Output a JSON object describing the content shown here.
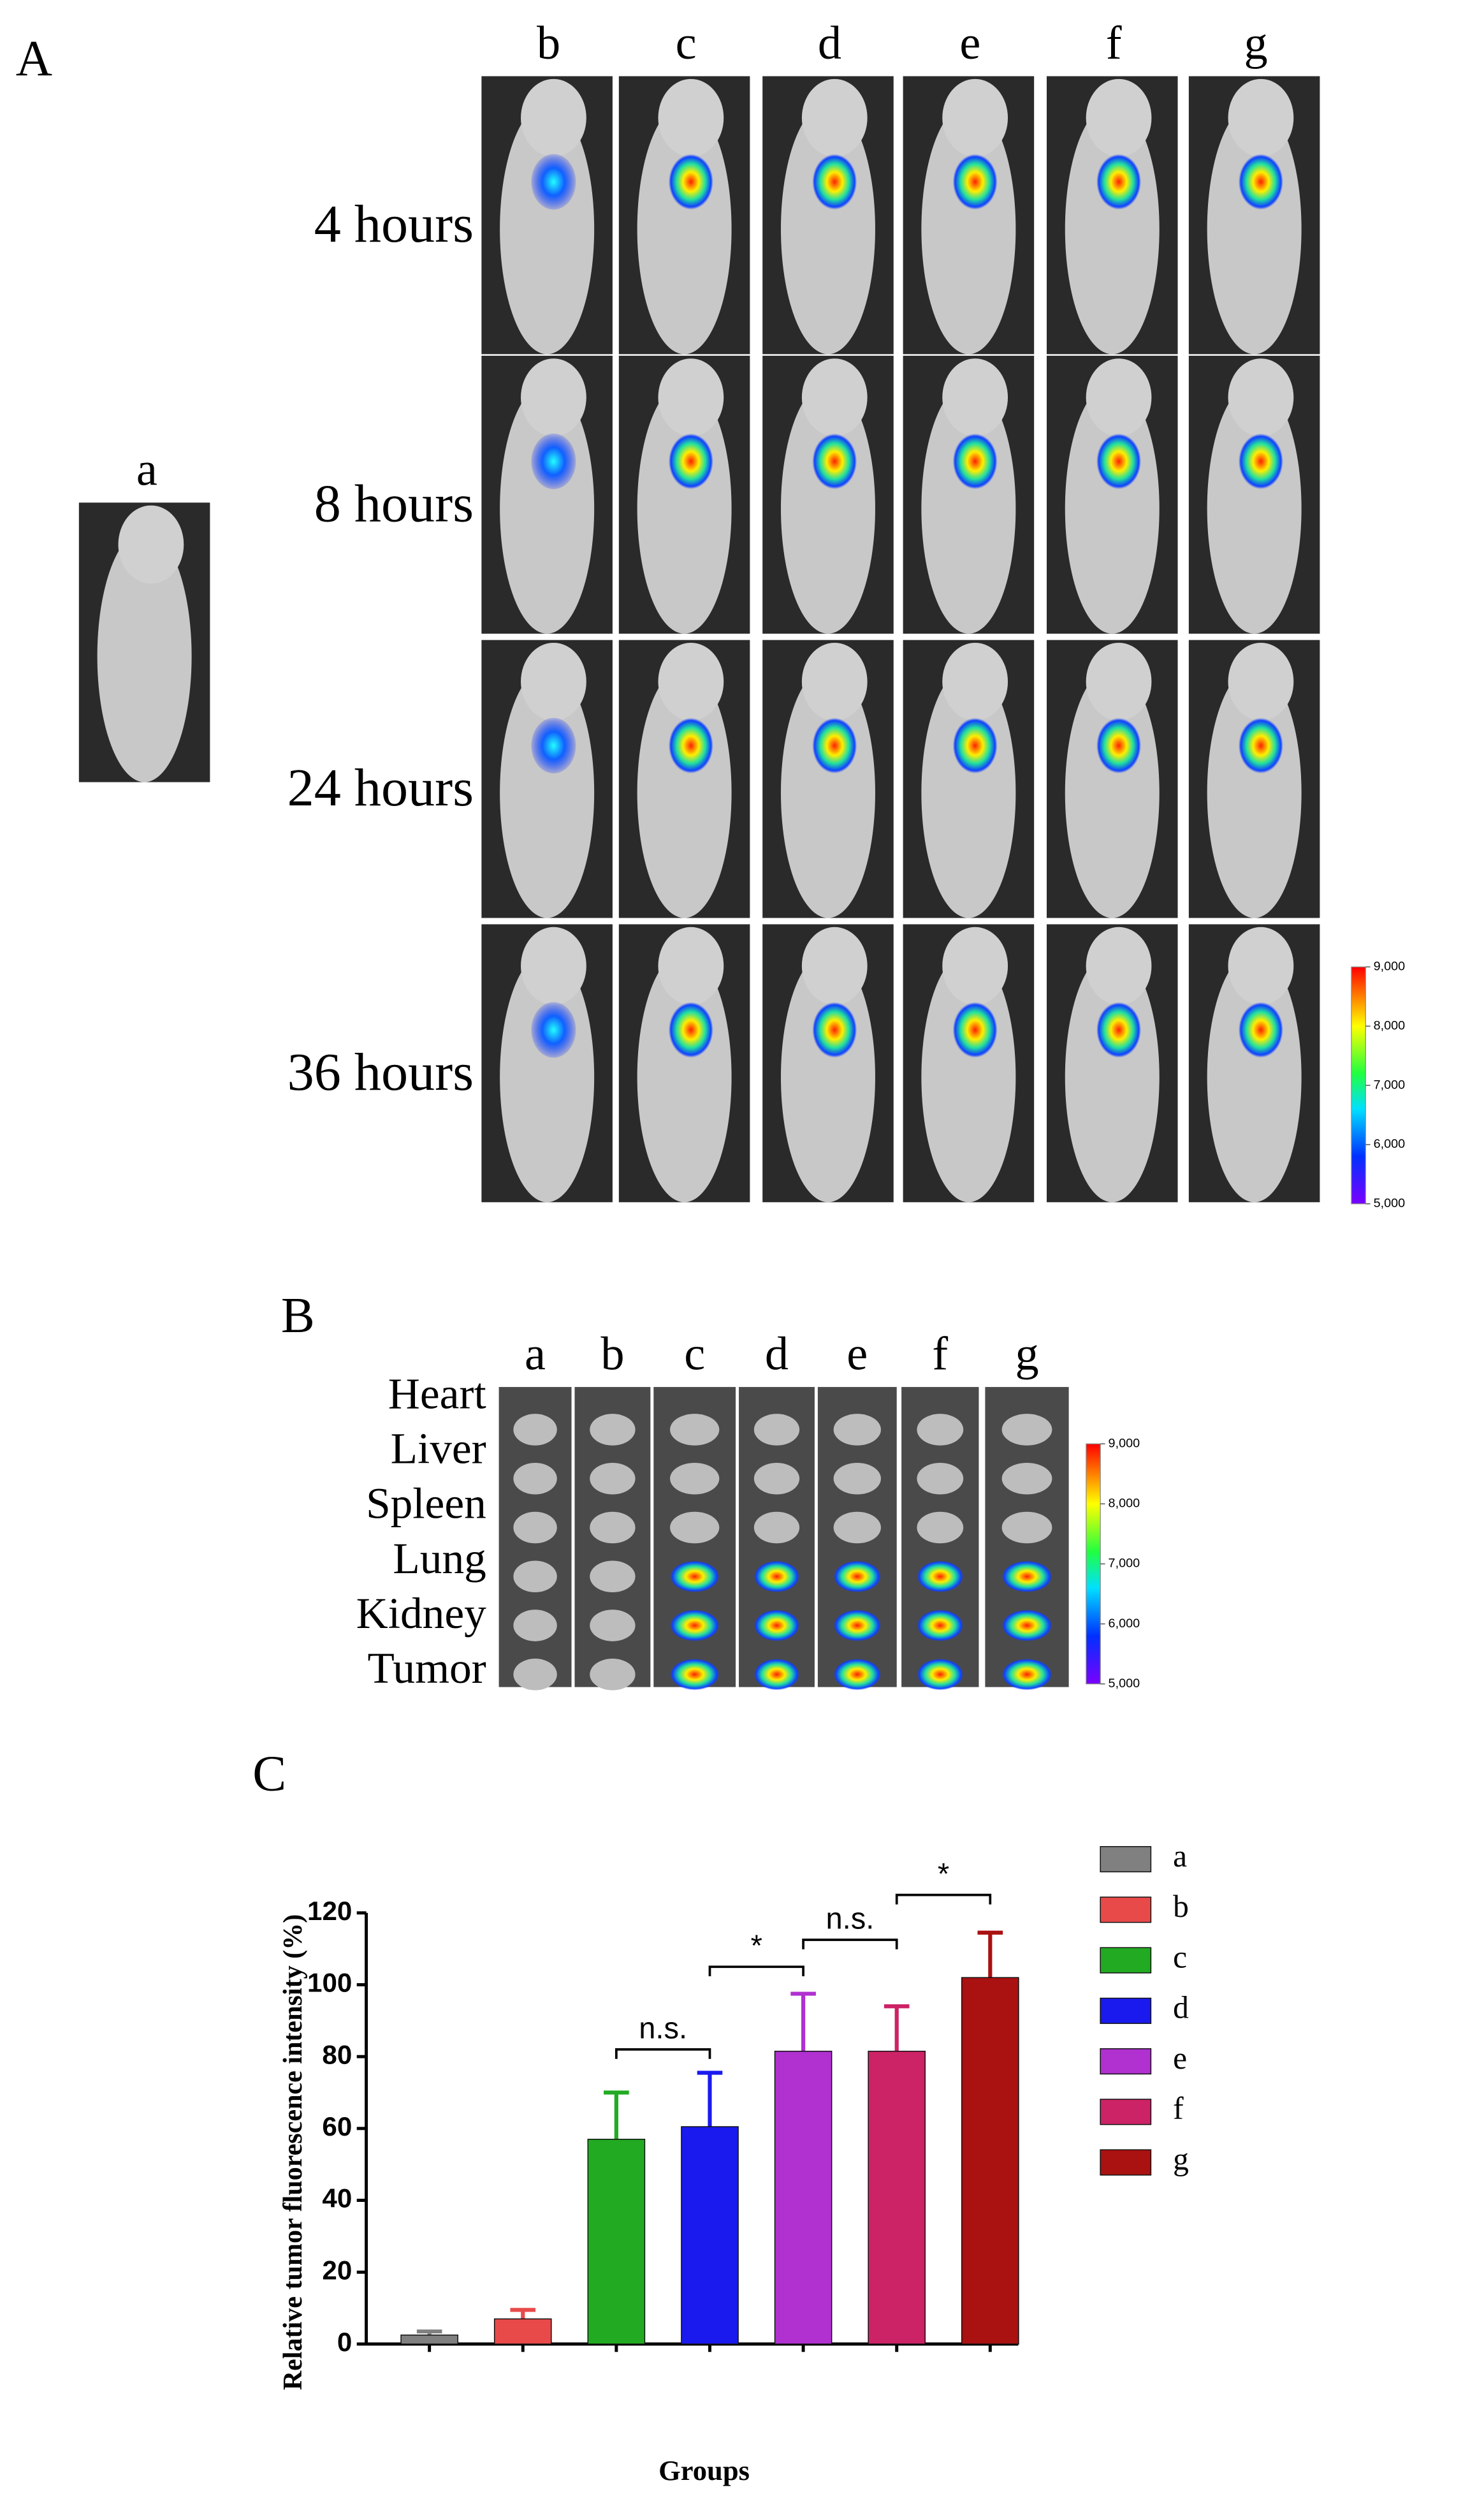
{
  "panel_a": {
    "label": "A",
    "control": "a",
    "columns": [
      "b",
      "c",
      "d",
      "e",
      "f",
      "g"
    ],
    "rows": [
      "4 hours",
      "8 hours",
      "24 hours",
      "36 hours"
    ],
    "colorbar": {
      "lim": [
        5000,
        9000
      ],
      "ticks": [
        {
          "value": 5000,
          "label": "5,000"
        },
        {
          "value": 6000,
          "label": "6,000"
        },
        {
          "value": 7000,
          "label": "7,000"
        },
        {
          "value": 8000,
          "label": "8,000"
        },
        {
          "value": 9000,
          "label": "9,000"
        }
      ]
    }
  },
  "panel_b": {
    "label": "B",
    "columns": [
      "a",
      "b",
      "c",
      "d",
      "e",
      "f",
      "g"
    ],
    "organs": [
      "Heart",
      "Liver",
      "Spleen",
      "Lung",
      "Kidney",
      "Tumor"
    ],
    "colorbar": {
      "lim": [
        5000,
        9000
      ],
      "ticks": [
        {
          "value": 5000,
          "label": "5,000"
        },
        {
          "value": 6000,
          "label": "6,000"
        },
        {
          "value": 7000,
          "label": "7,000"
        },
        {
          "value": 8000,
          "label": "8,000"
        },
        {
          "value": 9000,
          "label": "9,000"
        }
      ]
    }
  },
  "chart_data": {
    "type": "bar",
    "panel_label": "C",
    "x_label": "Groups",
    "y_label": "Relative tumor fluorescence intensity (%)",
    "categories": [
      "a",
      "b",
      "c",
      "d",
      "e",
      "f",
      "g"
    ],
    "values": [
      2.5,
      7,
      57,
      60.5,
      81.5,
      81.5,
      102
    ],
    "errors": [
      1,
      2.5,
      13,
      15,
      16,
      12.5,
      12.5
    ],
    "colors": [
      "#808080",
      "#e84a4a",
      "#22aa22",
      "#1a1aee",
      "#b030d0",
      "#cc2266",
      "#aa1111"
    ],
    "ylim": [
      0,
      120
    ],
    "yticks": [
      0,
      20,
      40,
      60,
      80,
      100,
      120
    ],
    "annotations": [
      {
        "text": "n.s.",
        "between": [
          "c",
          "d"
        ],
        "y": 82
      },
      {
        "text": "*",
        "between": [
          "d",
          "e"
        ],
        "y": 105
      },
      {
        "text": "n.s.",
        "between": [
          "e",
          "f"
        ],
        "y": 112.5
      },
      {
        "text": "*",
        "between": [
          "f",
          "g"
        ],
        "y": 125
      }
    ]
  }
}
